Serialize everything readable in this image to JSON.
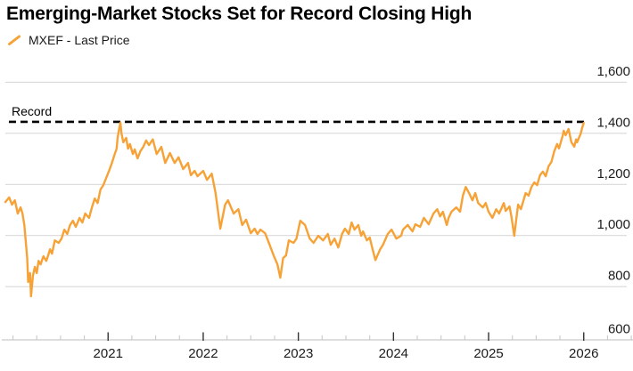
{
  "header": {
    "title": "Emerging-Market Stocks Set for Record Closing High",
    "legend": {
      "icon": "orange-slash-icon",
      "label": "MXEF - Last Price",
      "color": "#F6A237"
    }
  },
  "colors": {
    "accent_orange": "#F6A237",
    "grid": "#d9d9d9",
    "axis": "#c9c9c9",
    "major_tick": "#333333",
    "record_line": "#000000",
    "label_text": "#1c1c1c"
  },
  "chart_data": {
    "type": "line",
    "title": "Emerging-Market Stocks Set for Record Closing High",
    "xlabel": "",
    "ylabel": "",
    "grid": "horizontal",
    "y_axis": {
      "side": "right",
      "ticks": [
        600,
        800,
        1000,
        1200,
        1400,
        1600
      ],
      "tick_labels": [
        "600",
        "800",
        "1,000",
        "1,200",
        "1,400",
        "1,600"
      ],
      "ylim": [
        600,
        1700
      ]
    },
    "x_axis": {
      "domain_years": [
        2019.92,
        2026.5
      ],
      "major_ticks": [
        {
          "t": 2021,
          "label": "2021"
        },
        {
          "t": 2022,
          "label": "2022"
        },
        {
          "t": 2023,
          "label": "2023"
        },
        {
          "t": 2024,
          "label": "2024"
        },
        {
          "t": 2025,
          "label": "2025"
        },
        {
          "t": 2026,
          "label": "2026"
        }
      ],
      "minor_tick_interval_years": 0.25
    },
    "annotation": {
      "label": "Record",
      "level": 1445,
      "style": "dashed-black"
    },
    "series": [
      {
        "name": "MXEF - Last Price",
        "color": "#F6A237",
        "points": [
          [
            2019.92,
            1131
          ],
          [
            2019.96,
            1149
          ],
          [
            2019.99,
            1121
          ],
          [
            2020.02,
            1138
          ],
          [
            2020.05,
            1086
          ],
          [
            2020.08,
            1110
          ],
          [
            2020.1,
            1086
          ],
          [
            2020.12,
            1041
          ],
          [
            2020.15,
            912
          ],
          [
            2020.16,
            818
          ],
          [
            2020.18,
            853
          ],
          [
            2020.19,
            762
          ],
          [
            2020.21,
            842
          ],
          [
            2020.23,
            877
          ],
          [
            2020.25,
            853
          ],
          [
            2020.27,
            901
          ],
          [
            2020.29,
            887
          ],
          [
            2020.32,
            919
          ],
          [
            2020.35,
            901
          ],
          [
            2020.37,
            922
          ],
          [
            2020.39,
            946
          ],
          [
            2020.41,
            929
          ],
          [
            2020.44,
            981
          ],
          [
            2020.48,
            971
          ],
          [
            2020.51,
            988
          ],
          [
            2020.54,
            1023
          ],
          [
            2020.57,
            1006
          ],
          [
            2020.6,
            1041
          ],
          [
            2020.63,
            1058
          ],
          [
            2020.66,
            1034
          ],
          [
            2020.7,
            1069
          ],
          [
            2020.73,
            1051
          ],
          [
            2020.76,
            1086
          ],
          [
            2020.8,
            1069
          ],
          [
            2020.83,
            1110
          ],
          [
            2020.86,
            1145
          ],
          [
            2020.89,
            1127
          ],
          [
            2020.92,
            1180
          ],
          [
            2020.95,
            1197
          ],
          [
            2020.98,
            1225
          ],
          [
            2021.01,
            1253
          ],
          [
            2021.04,
            1284
          ],
          [
            2021.07,
            1319
          ],
          [
            2021.09,
            1340
          ],
          [
            2021.1,
            1382
          ],
          [
            2021.12,
            1424
          ],
          [
            2021.13,
            1442
          ],
          [
            2021.14,
            1400
          ],
          [
            2021.16,
            1365
          ],
          [
            2021.19,
            1382
          ],
          [
            2021.21,
            1340
          ],
          [
            2021.23,
            1358
          ],
          [
            2021.26,
            1319
          ],
          [
            2021.28,
            1337
          ],
          [
            2021.31,
            1302
          ],
          [
            2021.34,
            1330
          ],
          [
            2021.37,
            1347
          ],
          [
            2021.4,
            1372
          ],
          [
            2021.43,
            1354
          ],
          [
            2021.47,
            1376
          ],
          [
            2021.51,
            1319
          ],
          [
            2021.56,
            1347
          ],
          [
            2021.6,
            1284
          ],
          [
            2021.65,
            1323
          ],
          [
            2021.7,
            1284
          ],
          [
            2021.74,
            1306
          ],
          [
            2021.79,
            1260
          ],
          [
            2021.84,
            1284
          ],
          [
            2021.87,
            1236
          ],
          [
            2021.91,
            1253
          ],
          [
            2021.94,
            1232
          ],
          [
            2022.0,
            1253
          ],
          [
            2022.04,
            1218
          ],
          [
            2022.09,
            1242
          ],
          [
            2022.13,
            1166
          ],
          [
            2022.18,
            1027
          ],
          [
            2022.23,
            1121
          ],
          [
            2022.26,
            1138
          ],
          [
            2022.32,
            1086
          ],
          [
            2022.37,
            1103
          ],
          [
            2022.41,
            1041
          ],
          [
            2022.45,
            1062
          ],
          [
            2022.5,
            1009
          ],
          [
            2022.54,
            1027
          ],
          [
            2022.57,
            1006
          ],
          [
            2022.6,
            1023
          ],
          [
            2022.65,
            1009
          ],
          [
            2022.69,
            971
          ],
          [
            2022.74,
            922
          ],
          [
            2022.78,
            887
          ],
          [
            2022.81,
            835
          ],
          [
            2022.84,
            912
          ],
          [
            2022.87,
            922
          ],
          [
            2022.9,
            981
          ],
          [
            2022.95,
            971
          ],
          [
            2022.98,
            988
          ],
          [
            2023.02,
            1058
          ],
          [
            2023.07,
            1041
          ],
          [
            2023.12,
            988
          ],
          [
            2023.16,
            971
          ],
          [
            2023.21,
            999
          ],
          [
            2023.26,
            981
          ],
          [
            2023.31,
            1006
          ],
          [
            2023.34,
            964
          ],
          [
            2023.38,
            988
          ],
          [
            2023.42,
            953
          ],
          [
            2023.46,
            1006
          ],
          [
            2023.49,
            1027
          ],
          [
            2023.53,
            1006
          ],
          [
            2023.56,
            1051
          ],
          [
            2023.59,
            1023
          ],
          [
            2023.63,
            1041
          ],
          [
            2023.66,
            999
          ],
          [
            2023.68,
            1016
          ],
          [
            2023.72,
            981
          ],
          [
            2023.75,
            992
          ],
          [
            2023.78,
            946
          ],
          [
            2023.81,
            904
          ],
          [
            2023.86,
            946
          ],
          [
            2023.89,
            964
          ],
          [
            2023.94,
            1006
          ],
          [
            2023.98,
            1023
          ],
          [
            2024.03,
            988
          ],
          [
            2024.08,
            999
          ],
          [
            2024.1,
            1023
          ],
          [
            2024.15,
            1041
          ],
          [
            2024.2,
            1016
          ],
          [
            2024.23,
            1044
          ],
          [
            2024.28,
            1034
          ],
          [
            2024.32,
            1069
          ],
          [
            2024.37,
            1044
          ],
          [
            2024.42,
            1086
          ],
          [
            2024.46,
            1103
          ],
          [
            2024.49,
            1075
          ],
          [
            2024.52,
            1093
          ],
          [
            2024.56,
            1041
          ],
          [
            2024.58,
            1069
          ],
          [
            2024.61,
            1093
          ],
          [
            2024.66,
            1110
          ],
          [
            2024.7,
            1093
          ],
          [
            2024.73,
            1156
          ],
          [
            2024.76,
            1190
          ],
          [
            2024.8,
            1162
          ],
          [
            2024.83,
            1138
          ],
          [
            2024.86,
            1166
          ],
          [
            2024.89,
            1127
          ],
          [
            2024.94,
            1110
          ],
          [
            2024.97,
            1127
          ],
          [
            2025.0,
            1093
          ],
          [
            2025.04,
            1069
          ],
          [
            2025.08,
            1103
          ],
          [
            2025.11,
            1086
          ],
          [
            2025.16,
            1127
          ],
          [
            2025.18,
            1096
          ],
          [
            2025.22,
            1114
          ],
          [
            2025.24,
            1075
          ],
          [
            2025.27,
            999
          ],
          [
            2025.31,
            1121
          ],
          [
            2025.34,
            1103
          ],
          [
            2025.39,
            1166
          ],
          [
            2025.42,
            1156
          ],
          [
            2025.45,
            1190
          ],
          [
            2025.48,
            1208
          ],
          [
            2025.51,
            1197
          ],
          [
            2025.54,
            1236
          ],
          [
            2025.57,
            1250
          ],
          [
            2025.6,
            1232
          ],
          [
            2025.63,
            1271
          ],
          [
            2025.66,
            1288
          ],
          [
            2025.69,
            1330
          ],
          [
            2025.72,
            1358
          ],
          [
            2025.74,
            1341
          ],
          [
            2025.78,
            1393
          ],
          [
            2025.79,
            1410
          ],
          [
            2025.81,
            1393
          ],
          [
            2025.84,
            1417
          ],
          [
            2025.87,
            1365
          ],
          [
            2025.9,
            1348
          ],
          [
            2025.92,
            1376
          ],
          [
            2025.93,
            1365
          ],
          [
            2025.97,
            1400
          ],
          [
            2025.98,
            1417
          ],
          [
            2026.0,
            1441
          ]
        ]
      }
    ]
  }
}
